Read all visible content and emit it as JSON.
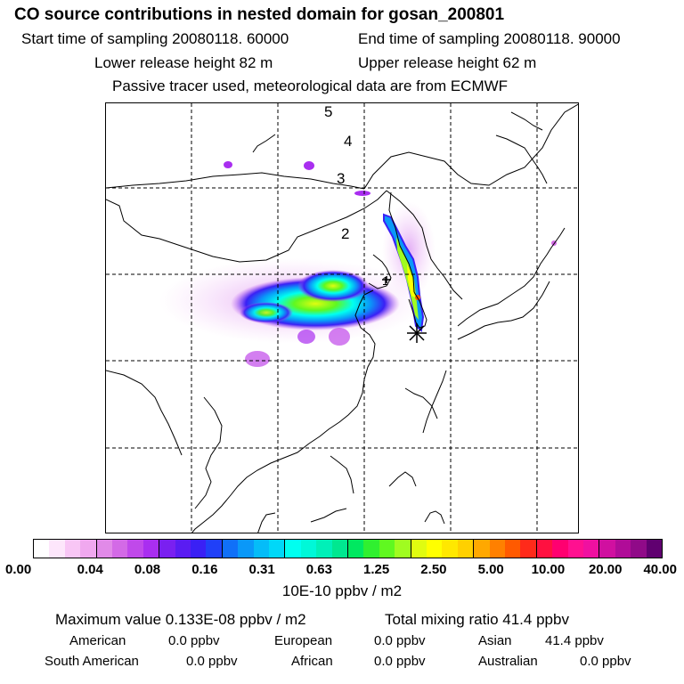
{
  "header": {
    "title": "CO  source contributions in nested domain for gosan_200801",
    "start_time": "Start time of sampling 20080118. 60000",
    "end_time": "End time of sampling 20080118. 90000",
    "lower_release": "Lower release height   82 m",
    "upper_release": "Upper release height   62 m",
    "tracer_note": "Passive tracer used, meteorological data are from ECMWF"
  },
  "map": {
    "trajectory_labels": [
      "5",
      "4",
      "3",
      "2",
      "1"
    ],
    "colors": {
      "frame": "#000000",
      "coast": "#000000",
      "grid": "#000000",
      "receptor": "#000000"
    }
  },
  "colorbar": {
    "ticks": [
      "0.00",
      "0.04",
      "0.08",
      "0.16",
      "0.31",
      "0.63",
      "1.25",
      "2.50",
      "5.00",
      "10.00",
      "20.00",
      "40.00"
    ],
    "units": "10E-10 ppbv / m2",
    "segments": [
      [
        "#ffffff",
        "#fde6fb",
        "#f8c6f5",
        "#f0a8ef"
      ],
      [
        "#e18ae8",
        "#d36ae6",
        "#c049ea",
        "#a92ef0"
      ],
      [
        "#7a20f0",
        "#5a1cf2",
        "#3a20f5",
        "#2040f8"
      ],
      [
        "#1070f8",
        "#0a98f8",
        "#05bcf8",
        "#00d8f8"
      ],
      [
        "#00fff0",
        "#00f8d8",
        "#00f0b8",
        "#00e890"
      ],
      [
        "#00e860",
        "#30f030",
        "#60f820",
        "#a0fc20"
      ],
      [
        "#e0fc10",
        "#ffff00",
        "#ffe800",
        "#ffd000"
      ],
      [
        "#ffa800",
        "#ff8000",
        "#ff5a00",
        "#ff2a1a"
      ],
      [
        "#ff1040",
        "#ff0070",
        "#ff1090",
        "#f010a0"
      ],
      [
        "#d010a0",
        "#b00c98",
        "#900a88",
        "#600070"
      ]
    ]
  },
  "summary": {
    "max_value": "Maximum value  0.133E-08 ppbv / m2",
    "total_mixing": "Total mixing ratio      41.4 ppbv",
    "regions": [
      {
        "name": "American",
        "value": "0.0 ppbv"
      },
      {
        "name": "European",
        "value": "0.0 ppbv"
      },
      {
        "name": "Asian",
        "value": "41.4 ppbv"
      },
      {
        "name": "South American",
        "value": "0.0 ppbv"
      },
      {
        "name": "African",
        "value": "0.0 ppbv"
      },
      {
        "name": "Australian",
        "value": "0.0 ppbv"
      }
    ]
  }
}
